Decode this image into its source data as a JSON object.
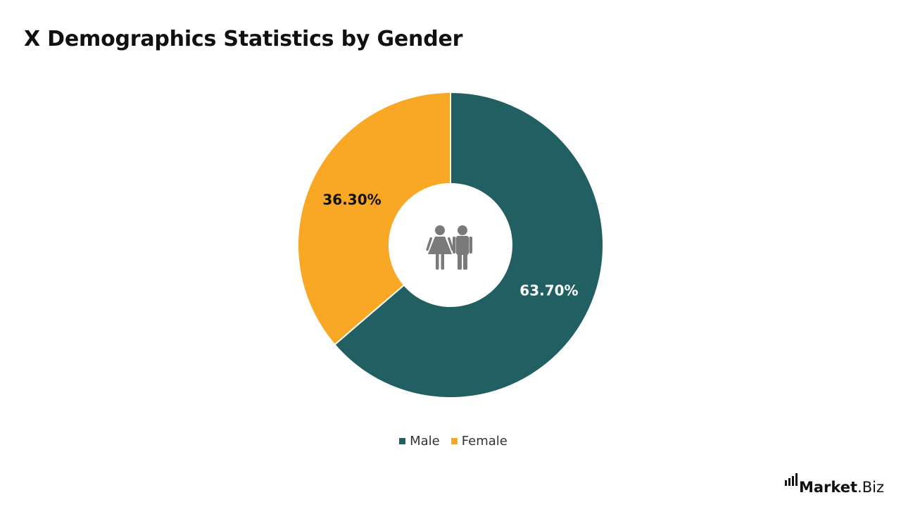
{
  "chart_data": {
    "type": "pie",
    "variant": "donut",
    "title": "X Demographics Statistics by Gender",
    "series": [
      {
        "name": "Male",
        "value": 63.7,
        "label": "63.70%",
        "color": "#215F63"
      },
      {
        "name": "Female",
        "value": 36.3,
        "label": "36.30%",
        "color": "#F9A826"
      }
    ],
    "legend_position": "bottom",
    "center_icon": "people-icon",
    "label_colors": {
      "Male": "#FFFFFF",
      "Female": "#111111"
    }
  },
  "colors": {
    "male": "#215F63",
    "female": "#F9A826",
    "center_icon": "#7A7A7A",
    "background": "#FFFFFF"
  },
  "branding": {
    "logo_bold": "Market",
    "logo_rest": ".Biz",
    "logo_icon": "bar-chart-icon"
  }
}
